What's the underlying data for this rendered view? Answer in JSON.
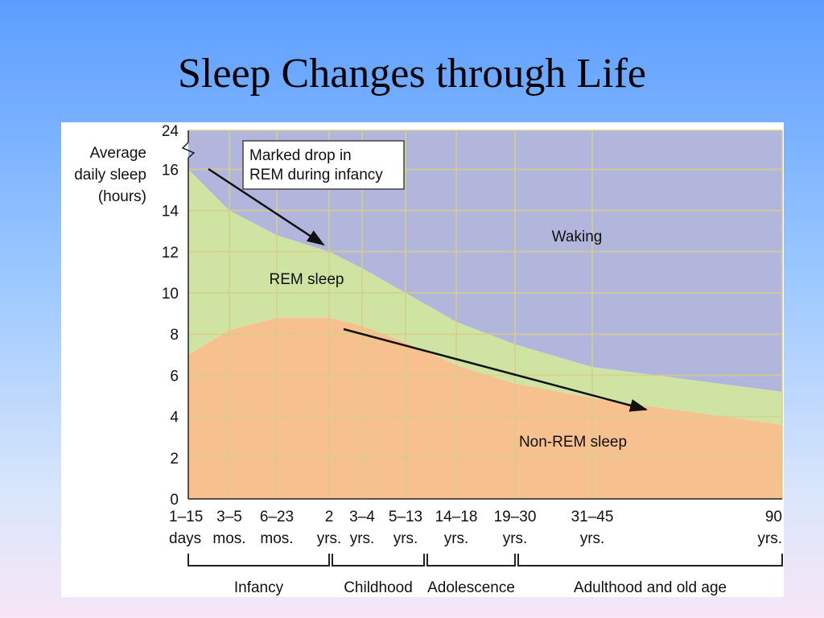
{
  "slide": {
    "title": "Sleep Changes through Life"
  },
  "chart_data": {
    "type": "area",
    "title": "Sleep Changes through Life",
    "ylabel": [
      "Average",
      "daily sleep",
      "(hours)"
    ],
    "ylim": [
      0,
      24
    ],
    "yticks": [
      0,
      2,
      4,
      6,
      8,
      10,
      12,
      14,
      16,
      24
    ],
    "grid": true,
    "x_categories": [
      [
        "1–15",
        "days"
      ],
      [
        "3–5",
        "mos."
      ],
      [
        "6–23",
        "mos."
      ],
      [
        "2",
        "yrs."
      ],
      [
        "3–4",
        "yrs."
      ],
      [
        "5–13",
        "yrs."
      ],
      [
        "14–18",
        "yrs."
      ],
      [
        "19–30",
        "yrs."
      ],
      [
        "31–45",
        "yrs."
      ],
      [
        "90",
        "yrs."
      ]
    ],
    "age_groups": [
      "Infancy",
      "Childhood",
      "Adolescence",
      "Adulthood and old age"
    ],
    "series": [
      {
        "name": "Non-REM sleep",
        "color": "#f6c08f",
        "values": [
          7.0,
          8.2,
          8.8,
          8.8,
          8.4,
          7.6,
          6.5,
          5.6,
          4.9,
          3.6
        ]
      },
      {
        "name": "REM sleep",
        "color": "#cfe3a3",
        "values": [
          16.0,
          14.0,
          12.8,
          12.0,
          11.2,
          10.0,
          8.6,
          7.5,
          6.4,
          5.2
        ]
      },
      {
        "name": "Waking",
        "color": "#b3b6dc",
        "values": [
          24,
          24,
          24,
          24,
          24,
          24,
          24,
          24,
          24,
          24
        ]
      }
    ],
    "annotations": [
      {
        "text": [
          "Marked drop in",
          "REM during infancy"
        ]
      }
    ]
  }
}
